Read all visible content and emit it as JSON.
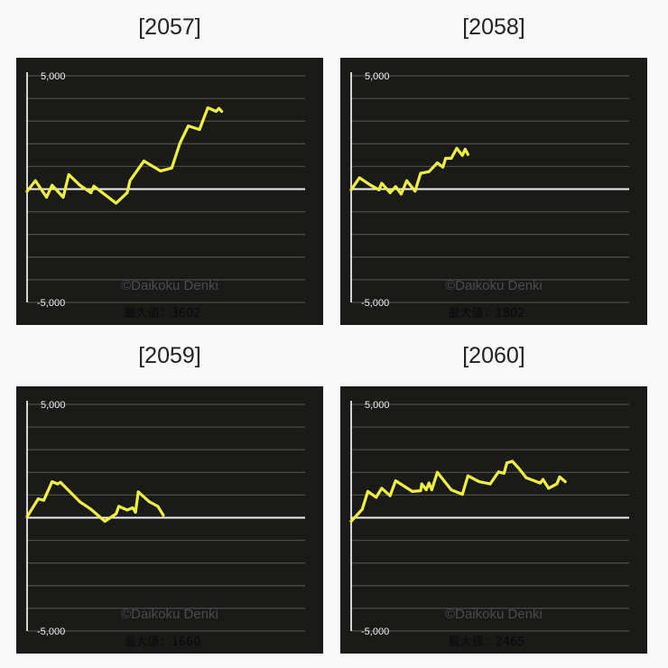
{
  "chart_data": [
    {
      "type": "line",
      "title": "[2057]",
      "ylim": [
        -5000,
        5000
      ],
      "xlim": [
        0,
        100
      ],
      "grid": true,
      "yticks": [
        "5,000",
        "-5,000"
      ],
      "watermark": "©Daikoku Denki",
      "max_label": "最大値：3602",
      "line_color": "#f0f040",
      "points": [
        [
          0,
          -100
        ],
        [
          3,
          370
        ],
        [
          7,
          -360
        ],
        [
          9,
          170
        ],
        [
          13,
          -360
        ],
        [
          15,
          640
        ],
        [
          19,
          170
        ],
        [
          23,
          -160
        ],
        [
          24,
          130
        ],
        [
          32,
          -620
        ],
        [
          36,
          -160
        ],
        [
          37,
          370
        ],
        [
          42,
          1240
        ],
        [
          48,
          800
        ],
        [
          52,
          930
        ],
        [
          55,
          2030
        ],
        [
          58,
          2790
        ],
        [
          62,
          2630
        ],
        [
          65,
          3590
        ],
        [
          68,
          3430
        ],
        [
          69,
          3560
        ],
        [
          70,
          3430
        ]
      ]
    },
    {
      "type": "line",
      "title": "[2058]",
      "ylim": [
        -5000,
        5000
      ],
      "xlim": [
        0,
        100
      ],
      "grid": true,
      "yticks": [
        "5,000",
        "-5,000"
      ],
      "watermark": "©Daikoku Denki",
      "max_label": "最大値：1802",
      "line_color": "#f0f040",
      "points": [
        [
          0,
          -30
        ],
        [
          3,
          500
        ],
        [
          7,
          170
        ],
        [
          10,
          -30
        ],
        [
          11,
          260
        ],
        [
          14,
          -160
        ],
        [
          16,
          110
        ],
        [
          18,
          -220
        ],
        [
          20,
          370
        ],
        [
          23,
          -90
        ],
        [
          25,
          700
        ],
        [
          28,
          770
        ],
        [
          31,
          1160
        ],
        [
          33,
          970
        ],
        [
          34,
          1360
        ],
        [
          36,
          1360
        ],
        [
          38,
          1800
        ],
        [
          40,
          1490
        ],
        [
          41,
          1760
        ],
        [
          42,
          1530
        ]
      ]
    },
    {
      "type": "line",
      "title": "[2059]",
      "ylim": [
        -5000,
        5000
      ],
      "xlim": [
        0,
        100
      ],
      "grid": true,
      "yticks": [
        "5,000",
        "-5,000"
      ],
      "watermark": "©Daikoku Denki",
      "max_label": "最大値：1660",
      "line_color": "#f0f040",
      "points": [
        [
          0,
          40
        ],
        [
          4,
          830
        ],
        [
          6,
          770
        ],
        [
          9,
          1590
        ],
        [
          11,
          1490
        ],
        [
          12,
          1560
        ],
        [
          19,
          700
        ],
        [
          23,
          370
        ],
        [
          28,
          -160
        ],
        [
          32,
          170
        ],
        [
          33,
          500
        ],
        [
          36,
          340
        ],
        [
          38,
          440
        ],
        [
          39,
          240
        ],
        [
          40,
          1140
        ],
        [
          44,
          700
        ],
        [
          47,
          500
        ],
        [
          49,
          110
        ]
      ]
    },
    {
      "type": "line",
      "title": "[2060]",
      "ylim": [
        -5000,
        5000
      ],
      "xlim": [
        0,
        100
      ],
      "grid": true,
      "yticks": [
        "5,000",
        "-5,000"
      ],
      "watermark": "©Daikoku Denki",
      "max_label": "最大値：2465",
      "line_color": "#f0f040",
      "points": [
        [
          0,
          -160
        ],
        [
          4,
          370
        ],
        [
          6,
          1160
        ],
        [
          9,
          900
        ],
        [
          11,
          1300
        ],
        [
          14,
          970
        ],
        [
          16,
          1630
        ],
        [
          22,
          1160
        ],
        [
          25,
          1190
        ],
        [
          25.4,
          1490
        ],
        [
          27,
          1230
        ],
        [
          28,
          1530
        ],
        [
          29,
          1230
        ],
        [
          31,
          2000
        ],
        [
          36,
          1230
        ],
        [
          40,
          1030
        ],
        [
          42,
          1850
        ],
        [
          46,
          1590
        ],
        [
          50,
          1490
        ],
        [
          53,
          2020
        ],
        [
          55,
          1960
        ],
        [
          56,
          2420
        ],
        [
          58,
          2490
        ],
        [
          60,
          2220
        ],
        [
          63,
          1760
        ],
        [
          68,
          1530
        ],
        [
          69,
          1690
        ],
        [
          71,
          1300
        ],
        [
          74,
          1490
        ],
        [
          75,
          1800
        ],
        [
          77,
          1590
        ]
      ]
    }
  ]
}
